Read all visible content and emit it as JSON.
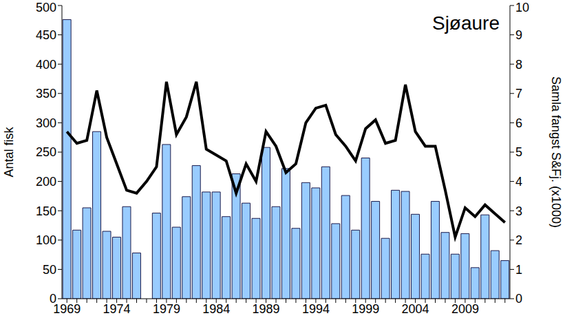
{
  "chart_data": {
    "type": "bar",
    "title": "Sjøaure",
    "y_label": "Antal fisk",
    "y2_label": "Samla fangst S&Fj. (x1000)",
    "categories": [
      "1969",
      null,
      null,
      null,
      null,
      "1974",
      null,
      null,
      null,
      null,
      "1979",
      null,
      null,
      null,
      null,
      "1984",
      null,
      null,
      null,
      null,
      "1989",
      null,
      null,
      null,
      null,
      "1994",
      null,
      null,
      null,
      null,
      "1999",
      null,
      null,
      null,
      null,
      "2004",
      null,
      null,
      null,
      null,
      "2009",
      null,
      null,
      null,
      null
    ],
    "series": [
      {
        "type": "bar",
        "color": "#99ccff",
        "values": [
          476,
          117,
          155,
          285,
          115,
          105,
          157,
          78,
          null,
          146,
          263,
          122,
          174,
          227,
          182,
          182,
          140,
          213,
          163,
          137,
          258,
          157,
          222,
          120,
          198,
          189,
          225,
          128,
          176,
          117,
          240,
          166,
          103,
          185,
          183,
          144,
          76,
          166,
          113,
          76,
          111,
          53,
          143,
          82,
          65
        ]
      },
      {
        "type": "line",
        "axis": "y2",
        "color": "#000000",
        "values": [
          5.7,
          5.3,
          5.4,
          7.1,
          5.5,
          4.6,
          3.7,
          3.6,
          4.0,
          4.5,
          7.4,
          5.6,
          6.2,
          7.4,
          5.1,
          4.9,
          4.7,
          3.6,
          4.6,
          4.0,
          5.7,
          5.2,
          4.3,
          4.6,
          6.0,
          6.5,
          6.6,
          5.6,
          5.2,
          4.7,
          5.8,
          6.1,
          5.3,
          5.4,
          7.3,
          5.7,
          5.2,
          5.2,
          3.7,
          2.1,
          3.1,
          2.8,
          3.2,
          2.9,
          2.6
        ]
      }
    ],
    "ylim": [
      0,
      500
    ],
    "yticks": [
      0,
      50,
      100,
      150,
      200,
      250,
      300,
      350,
      400,
      450,
      500
    ],
    "y2lim": [
      0,
      10
    ],
    "y2ticks": [
      0,
      1,
      2,
      3,
      4,
      5,
      6,
      7,
      8,
      9,
      10
    ],
    "grid": false
  }
}
